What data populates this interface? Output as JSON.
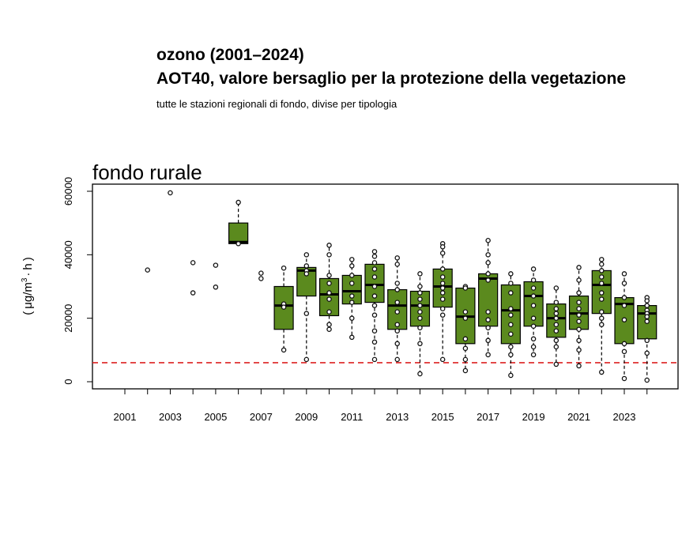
{
  "header": {
    "title_line1": "ozono (2001–2024)",
    "title_line2": "AOT40, valore bersaglio per la protezione della vegetazione",
    "subtitle": "tutte le stazioni regionali di fondo, divise per tipologia"
  },
  "chart_data": {
    "type": "box",
    "panel_title": "fondo rurale",
    "ylabel_parts": {
      "open": "(",
      "mu": "μg",
      "slash": "/",
      "m": "m",
      "exp": "3",
      "dot": "·",
      "h": "h",
      "close": ")"
    },
    "ylim": [
      0,
      60000
    ],
    "yticks": [
      0,
      20000,
      40000,
      60000
    ],
    "xlim": [
      2000.5,
      2024.5
    ],
    "xtick_labels": [
      2001,
      2003,
      2005,
      2007,
      2009,
      2011,
      2013,
      2015,
      2017,
      2019,
      2021,
      2023
    ],
    "target_line": {
      "value": 6000,
      "color": "#dd2222"
    },
    "box_color": "#5b8a1e",
    "years": [
      {
        "year": 2001,
        "points": []
      },
      {
        "year": 2002,
        "points": [
          35200
        ]
      },
      {
        "year": 2003,
        "points": [
          59500
        ]
      },
      {
        "year": 2004,
        "points": [
          37500,
          28000
        ]
      },
      {
        "year": 2005,
        "points": [
          36700,
          29800
        ]
      },
      {
        "year": 2006,
        "box": [
          43500,
          44000,
          50000
        ],
        "whisker": [
          43000,
          56500
        ],
        "points": [
          56500,
          43500
        ]
      },
      {
        "year": 2007,
        "points": [
          34200,
          32500
        ]
      },
      {
        "year": 2008,
        "box": [
          16500,
          24000,
          30000
        ],
        "whisker": [
          10000,
          35800
        ],
        "points": [
          35800,
          24500,
          23500,
          10000
        ]
      },
      {
        "year": 2009,
        "box": [
          27000,
          35000,
          36000
        ],
        "whisker": [
          7000,
          40000
        ],
        "points": [
          40000,
          36500,
          35000,
          34000,
          21500,
          7000
        ]
      },
      {
        "year": 2010,
        "box": [
          20800,
          27500,
          32500
        ],
        "whisker": [
          16500,
          43000
        ],
        "points": [
          43000,
          40000,
          33500,
          31000,
          28000,
          26000,
          22000,
          18000,
          16500
        ]
      },
      {
        "year": 2011,
        "box": [
          24500,
          28500,
          33500
        ],
        "whisker": [
          14000,
          38500
        ],
        "points": [
          38500,
          36500,
          33500,
          31000,
          27000,
          25000,
          20000,
          14000
        ]
      },
      {
        "year": 2012,
        "box": [
          25000,
          30500,
          37000
        ],
        "whisker": [
          7000,
          41000
        ],
        "points": [
          41000,
          39500,
          37500,
          35500,
          33000,
          30000,
          27000,
          24000,
          21000,
          16000,
          12500,
          7000
        ]
      },
      {
        "year": 2013,
        "box": [
          16500,
          24000,
          29000
        ],
        "whisker": [
          7000,
          39000
        ],
        "points": [
          39000,
          37000,
          31000,
          29000,
          25000,
          22000,
          18000,
          16000,
          12000,
          7000
        ]
      },
      {
        "year": 2014,
        "box": [
          17500,
          24000,
          28500
        ],
        "whisker": [
          2500,
          34000
        ],
        "points": [
          34000,
          30000,
          28000,
          26000,
          24000,
          22000,
          20000,
          17000,
          12000,
          2500
        ]
      },
      {
        "year": 2015,
        "box": [
          23500,
          30000,
          35500
        ],
        "whisker": [
          7000,
          43500
        ],
        "points": [
          43500,
          42500,
          40500,
          35500,
          33000,
          31000,
          29500,
          28000,
          26000,
          23000,
          21000,
          7000
        ]
      },
      {
        "year": 2016,
        "box": [
          12000,
          20500,
          29500
        ],
        "whisker": [
          3500,
          30000
        ],
        "points": [
          30000,
          29500,
          22000,
          20000,
          13500,
          10500,
          7000,
          3500
        ]
      },
      {
        "year": 2017,
        "box": [
          17500,
          32500,
          34000
        ],
        "whisker": [
          8500,
          44500
        ],
        "points": [
          44500,
          40000,
          37500,
          34000,
          32000,
          22000,
          19500,
          17000,
          13000,
          8500
        ]
      },
      {
        "year": 2018,
        "box": [
          12000,
          22500,
          30500
        ],
        "whisker": [
          2000,
          34000
        ],
        "points": [
          34000,
          31000,
          28000,
          23000,
          21000,
          18000,
          15000,
          11000,
          8500,
          2000
        ]
      },
      {
        "year": 2019,
        "box": [
          17500,
          27000,
          31500
        ],
        "whisker": [
          8500,
          35500
        ],
        "points": [
          35500,
          32000,
          29500,
          27000,
          24000,
          20000,
          17500,
          13500,
          11000,
          8500
        ]
      },
      {
        "year": 2020,
        "box": [
          14000,
          20000,
          24500
        ],
        "whisker": [
          5500,
          29500
        ],
        "points": [
          29500,
          25000,
          23000,
          21500,
          20000,
          18000,
          16000,
          13000,
          11000,
          5500
        ]
      },
      {
        "year": 2021,
        "box": [
          16500,
          21500,
          27000
        ],
        "whisker": [
          5000,
          36000
        ],
        "points": [
          36000,
          32000,
          28000,
          25000,
          23000,
          21000,
          19000,
          16500,
          13000,
          10000,
          5000
        ]
      },
      {
        "year": 2022,
        "box": [
          21500,
          30500,
          35000
        ],
        "whisker": [
          3000,
          38500
        ],
        "points": [
          38500,
          37000,
          35000,
          33000,
          31000,
          28000,
          26000,
          22000,
          20000,
          18000,
          3000
        ]
      },
      {
        "year": 2023,
        "box": [
          12000,
          24500,
          26500
        ],
        "whisker": [
          1000,
          34000
        ],
        "points": [
          34000,
          31000,
          26500,
          24000,
          19500,
          12000,
          9500,
          1000
        ]
      },
      {
        "year": 2024,
        "box": [
          13500,
          21500,
          24000
        ],
        "whisker": [
          500,
          26500
        ],
        "points": [
          26500,
          25500,
          24000,
          22500,
          21500,
          20500,
          19000,
          13000,
          9000,
          500
        ]
      }
    ]
  }
}
